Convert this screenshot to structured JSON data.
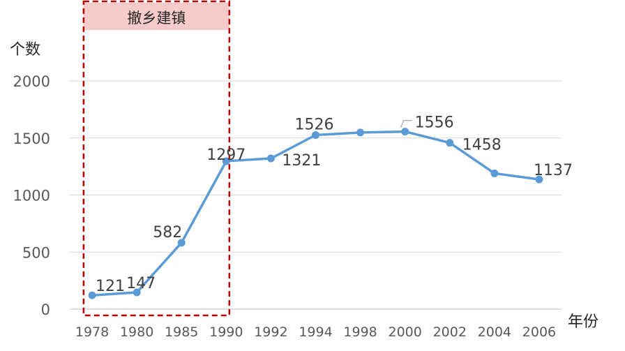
{
  "chart_data": {
    "type": "line",
    "ylabel": "个数",
    "xlabel": "年份",
    "ylim": [
      0,
      2000
    ],
    "yticks": [
      0,
      500,
      1000,
      1500,
      2000
    ],
    "grid": true,
    "categories": [
      "1978",
      "1980",
      "1985",
      "1990",
      "1992",
      "1994",
      "1998",
      "2000",
      "2002",
      "2004",
      "2006"
    ],
    "series": [
      {
        "values": [
          121,
          147,
          582,
          1297,
          1321,
          1526,
          1548,
          1556,
          1458,
          1190,
          1137
        ],
        "data_labels": [
          "121",
          "147",
          "582",
          "1297",
          "1321",
          "1526",
          "",
          "1556",
          "1458",
          "",
          "1137"
        ],
        "color": "#5b9bd5"
      }
    ],
    "annotations": [
      {
        "text": "撤乡建镇",
        "span": [
          "1978",
          "1990"
        ],
        "style": "dashed-box",
        "border_color": "#c00000",
        "fill_color": "#f8cbcb"
      }
    ]
  }
}
